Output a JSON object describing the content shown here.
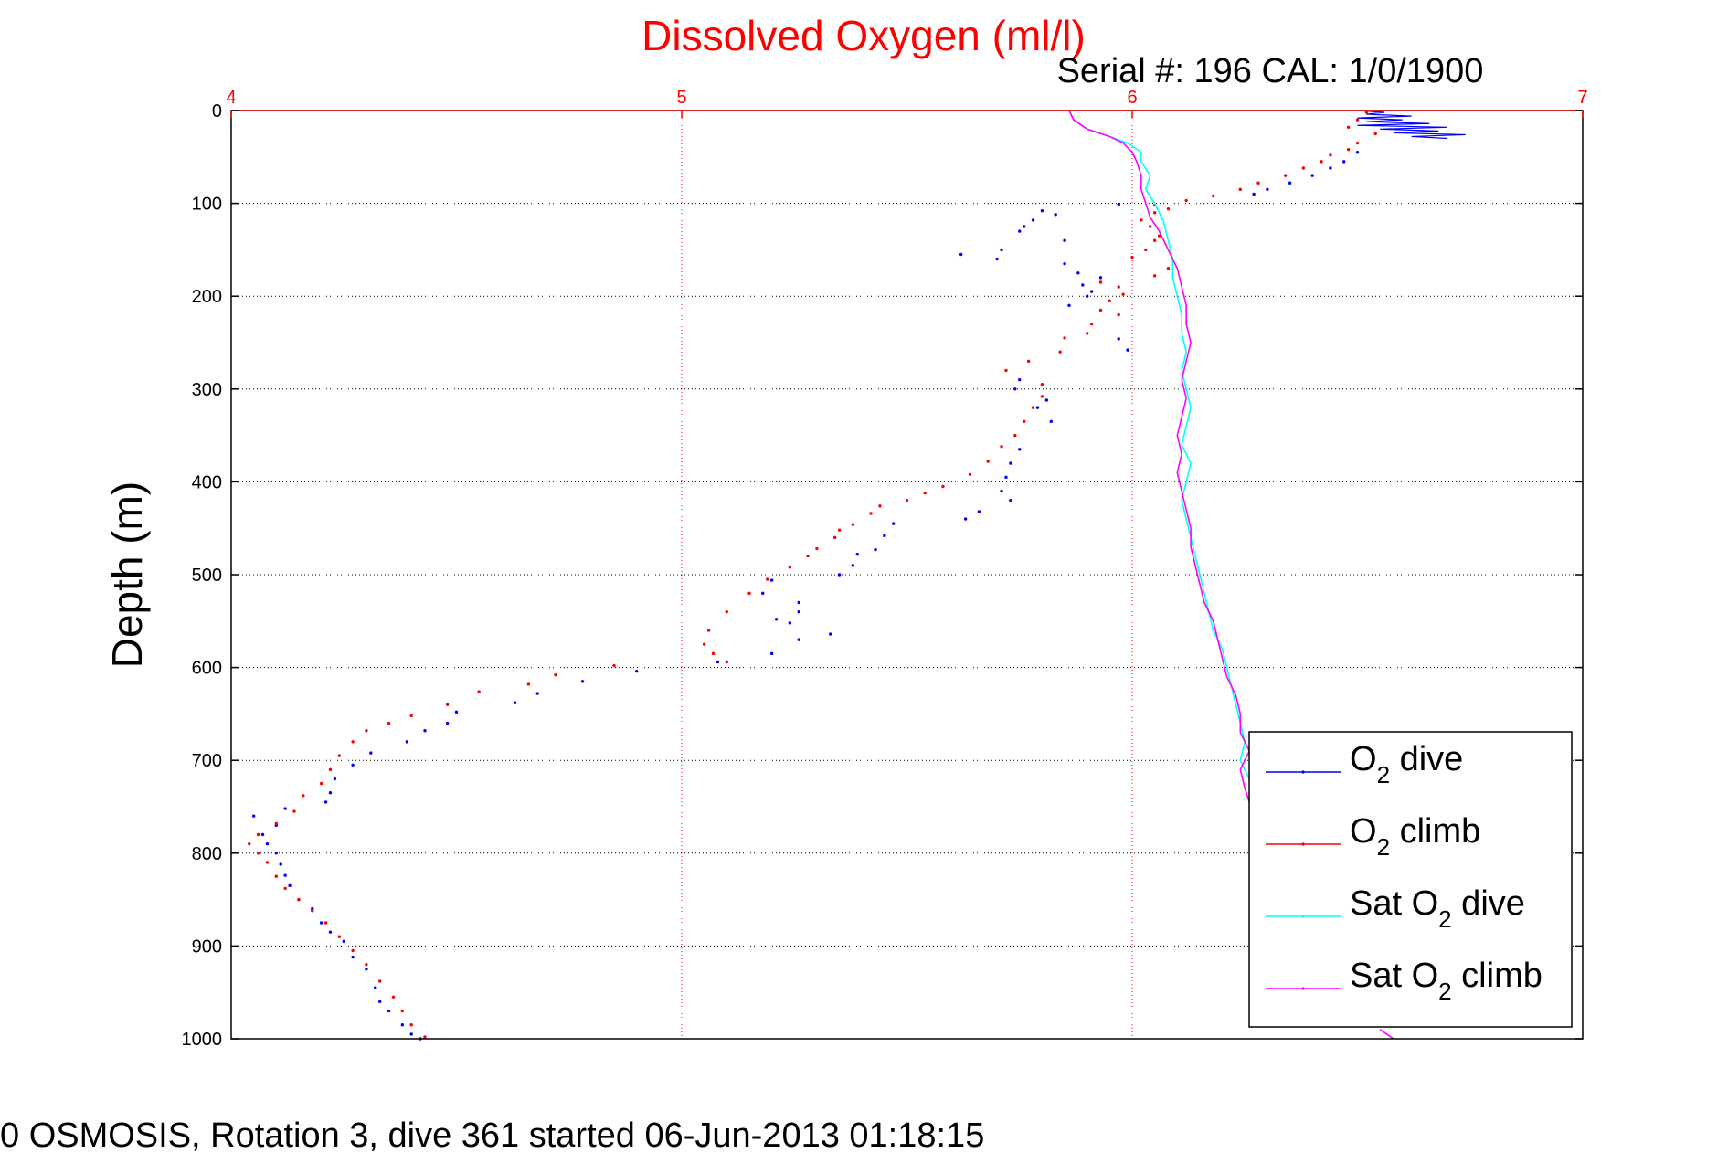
{
  "chart_data": {
    "type": "scatter",
    "title": "Dissolved Oxygen (ml/l)",
    "subtitle": "Serial #: 196  CAL: 1/0/1900",
    "ylabel": "Depth (m)",
    "xlabel": "",
    "xlim": [
      4,
      7
    ],
    "ylim": [
      0,
      1000
    ],
    "y_reversed": true,
    "x_axis_position": "top",
    "grid": true,
    "x_ticks": [
      "4",
      "5",
      "6",
      "7"
    ],
    "y_ticks": [
      "0",
      "100",
      "200",
      "300",
      "400",
      "500",
      "600",
      "700",
      "800",
      "900",
      "1000"
    ],
    "caption": "0 OSMOSIS, Rotation 3, dive 361 started 06-Jun-2013 01:18:15",
    "legend": {
      "position": "bottom-right",
      "entries": [
        {
          "base": "O",
          "sub": "2",
          "rest": " dive",
          "color": "#0000ff"
        },
        {
          "base": "O",
          "sub": "2",
          "rest": " climb",
          "color": "#ff0000"
        },
        {
          "base": "Sat O",
          "sub": "2",
          "rest": " dive",
          "color": "#00ffff"
        },
        {
          "base": "Sat O",
          "sub": "2",
          "rest": " climb",
          "color": "#ff00ff"
        }
      ]
    },
    "series": [
      {
        "name": "O2 dive",
        "color": "#0000ff",
        "mode": "line-top-then-points",
        "top_line_depth_max": 30,
        "points": [
          [
            6.5,
            0
          ],
          [
            6.56,
            2
          ],
          [
            6.52,
            4
          ],
          [
            6.62,
            6
          ],
          [
            6.5,
            8
          ],
          [
            6.6,
            10
          ],
          [
            6.52,
            12
          ],
          [
            6.66,
            14
          ],
          [
            6.5,
            16
          ],
          [
            6.7,
            18
          ],
          [
            6.55,
            20
          ],
          [
            6.68,
            22
          ],
          [
            6.58,
            24
          ],
          [
            6.74,
            26
          ],
          [
            6.62,
            28
          ],
          [
            6.7,
            30
          ],
          [
            6.5,
            45
          ],
          [
            6.47,
            55
          ],
          [
            6.44,
            62
          ],
          [
            6.4,
            70
          ],
          [
            6.35,
            78
          ],
          [
            6.3,
            85
          ],
          [
            6.27,
            90
          ],
          [
            5.97,
            101
          ],
          [
            5.8,
            108
          ],
          [
            5.83,
            112
          ],
          [
            5.78,
            118
          ],
          [
            5.76,
            125
          ],
          [
            5.75,
            130
          ],
          [
            5.85,
            140
          ],
          [
            5.71,
            150
          ],
          [
            5.62,
            155
          ],
          [
            5.7,
            160
          ],
          [
            5.85,
            165
          ],
          [
            5.88,
            175
          ],
          [
            5.93,
            180
          ],
          [
            5.89,
            188
          ],
          [
            5.91,
            195
          ],
          [
            5.9,
            200
          ],
          [
            5.86,
            210
          ],
          [
            5.97,
            246
          ],
          [
            5.99,
            258
          ],
          [
            5.75,
            290
          ],
          [
            5.74,
            300
          ],
          [
            5.81,
            312
          ],
          [
            5.79,
            320
          ],
          [
            5.82,
            335
          ],
          [
            5.75,
            365
          ],
          [
            5.73,
            380
          ],
          [
            5.72,
            395
          ],
          [
            5.71,
            410
          ],
          [
            5.73,
            420
          ],
          [
            5.66,
            432
          ],
          [
            5.63,
            440
          ],
          [
            5.47,
            445
          ],
          [
            5.45,
            458
          ],
          [
            5.43,
            473
          ],
          [
            5.39,
            478
          ],
          [
            5.38,
            490
          ],
          [
            5.35,
            500
          ],
          [
            5.2,
            506
          ],
          [
            5.18,
            520
          ],
          [
            5.26,
            530
          ],
          [
            5.26,
            540
          ],
          [
            5.21,
            548
          ],
          [
            5.24,
            552
          ],
          [
            5.33,
            564
          ],
          [
            5.26,
            570
          ],
          [
            5.2,
            585
          ],
          [
            5.08,
            594
          ],
          [
            4.9,
            604
          ],
          [
            4.78,
            615
          ],
          [
            4.68,
            628
          ],
          [
            4.63,
            638
          ],
          [
            4.5,
            648
          ],
          [
            4.48,
            660
          ],
          [
            4.43,
            668
          ],
          [
            4.39,
            680
          ],
          [
            4.31,
            692
          ],
          [
            4.27,
            705
          ],
          [
            4.23,
            720
          ],
          [
            4.22,
            735
          ],
          [
            4.21,
            745
          ],
          [
            4.12,
            752
          ],
          [
            4.05,
            760
          ],
          [
            4.1,
            770
          ],
          [
            4.07,
            780
          ],
          [
            4.08,
            790
          ],
          [
            4.1,
            800
          ],
          [
            4.11,
            812
          ],
          [
            4.12,
            824
          ],
          [
            4.13,
            835
          ],
          [
            4.15,
            850
          ],
          [
            4.18,
            860
          ],
          [
            4.2,
            875
          ],
          [
            4.22,
            885
          ],
          [
            4.25,
            895
          ],
          [
            4.27,
            912
          ],
          [
            4.3,
            925
          ],
          [
            4.32,
            945
          ],
          [
            4.33,
            960
          ],
          [
            4.35,
            970
          ],
          [
            4.38,
            985
          ],
          [
            4.4,
            995
          ],
          [
            4.42,
            1000
          ]
        ]
      },
      {
        "name": "O2 climb",
        "color": "#ff0000",
        "mode": "points",
        "points": [
          [
            6.52,
            2
          ],
          [
            6.5,
            10
          ],
          [
            6.48,
            18
          ],
          [
            6.54,
            25
          ],
          [
            6.5,
            35
          ],
          [
            6.48,
            42
          ],
          [
            6.44,
            48
          ],
          [
            6.42,
            55
          ],
          [
            6.38,
            62
          ],
          [
            6.34,
            70
          ],
          [
            6.28,
            78
          ],
          [
            6.24,
            85
          ],
          [
            6.18,
            92
          ],
          [
            6.12,
            97
          ],
          [
            6.05,
            102
          ],
          [
            6.08,
            106
          ],
          [
            6.05,
            110
          ],
          [
            6.02,
            118
          ],
          [
            6.04,
            125
          ],
          [
            6.06,
            135
          ],
          [
            6.05,
            140
          ],
          [
            6.03,
            150
          ],
          [
            6.0,
            158
          ],
          [
            6.08,
            170
          ],
          [
            6.05,
            178
          ],
          [
            5.93,
            185
          ],
          [
            5.97,
            190
          ],
          [
            5.98,
            198
          ],
          [
            5.95,
            205
          ],
          [
            5.93,
            215
          ],
          [
            5.97,
            220
          ],
          [
            5.91,
            230
          ],
          [
            5.9,
            240
          ],
          [
            5.85,
            245
          ],
          [
            5.84,
            260
          ],
          [
            5.77,
            270
          ],
          [
            5.72,
            280
          ],
          [
            5.8,
            295
          ],
          [
            5.8,
            308
          ],
          [
            5.78,
            320
          ],
          [
            5.76,
            335
          ],
          [
            5.74,
            350
          ],
          [
            5.71,
            362
          ],
          [
            5.68,
            378
          ],
          [
            5.64,
            392
          ],
          [
            5.58,
            405
          ],
          [
            5.54,
            412
          ],
          [
            5.5,
            420
          ],
          [
            5.44,
            426
          ],
          [
            5.42,
            434
          ],
          [
            5.38,
            446
          ],
          [
            5.35,
            452
          ],
          [
            5.34,
            460
          ],
          [
            5.3,
            472
          ],
          [
            5.28,
            480
          ],
          [
            5.24,
            492
          ],
          [
            5.19,
            505
          ],
          [
            5.15,
            520
          ],
          [
            5.1,
            540
          ],
          [
            5.06,
            560
          ],
          [
            5.05,
            575
          ],
          [
            5.07,
            585
          ],
          [
            5.1,
            594
          ],
          [
            4.85,
            598
          ],
          [
            4.72,
            608
          ],
          [
            4.66,
            618
          ],
          [
            4.55,
            626
          ],
          [
            4.48,
            640
          ],
          [
            4.4,
            652
          ],
          [
            4.35,
            660
          ],
          [
            4.3,
            668
          ],
          [
            4.27,
            680
          ],
          [
            4.24,
            695
          ],
          [
            4.22,
            710
          ],
          [
            4.2,
            725
          ],
          [
            4.16,
            738
          ],
          [
            4.14,
            755
          ],
          [
            4.1,
            768
          ],
          [
            4.06,
            780
          ],
          [
            4.04,
            790
          ],
          [
            4.06,
            800
          ],
          [
            4.08,
            810
          ],
          [
            4.1,
            825
          ],
          [
            4.12,
            838
          ],
          [
            4.15,
            850
          ],
          [
            4.18,
            862
          ],
          [
            4.21,
            875
          ],
          [
            4.24,
            890
          ],
          [
            4.27,
            905
          ],
          [
            4.3,
            920
          ],
          [
            4.33,
            938
          ],
          [
            4.36,
            955
          ],
          [
            4.38,
            970
          ],
          [
            4.4,
            985
          ],
          [
            4.43,
            998
          ]
        ]
      },
      {
        "name": "Sat O2 dive",
        "color": "#00ffff",
        "mode": "line",
        "points": [
          [
            5.86,
            0
          ],
          [
            5.87,
            10
          ],
          [
            5.9,
            20
          ],
          [
            5.95,
            28
          ],
          [
            5.99,
            35
          ],
          [
            6.02,
            45
          ],
          [
            6.02,
            55
          ],
          [
            6.04,
            70
          ],
          [
            6.03,
            85
          ],
          [
            6.05,
            100
          ],
          [
            6.07,
            120
          ],
          [
            6.08,
            140
          ],
          [
            6.09,
            160
          ],
          [
            6.09,
            180
          ],
          [
            6.1,
            200
          ],
          [
            6.11,
            220
          ],
          [
            6.11,
            240
          ],
          [
            6.12,
            260
          ],
          [
            6.11,
            280
          ],
          [
            6.12,
            300
          ],
          [
            6.13,
            320
          ],
          [
            6.12,
            340
          ],
          [
            6.11,
            360
          ],
          [
            6.13,
            380
          ],
          [
            6.12,
            400
          ],
          [
            6.11,
            420
          ],
          [
            6.12,
            440
          ],
          [
            6.13,
            460
          ],
          [
            6.14,
            480
          ],
          [
            6.15,
            500
          ],
          [
            6.16,
            520
          ],
          [
            6.17,
            540
          ],
          [
            6.18,
            560
          ],
          [
            6.2,
            580
          ],
          [
            6.21,
            600
          ],
          [
            6.22,
            620
          ],
          [
            6.23,
            640
          ],
          [
            6.24,
            660
          ],
          [
            6.25,
            680
          ],
          [
            6.24,
            700
          ],
          [
            6.26,
            720
          ],
          [
            6.27,
            740
          ],
          [
            6.55,
            990
          ],
          [
            6.58,
            1000
          ]
        ]
      },
      {
        "name": "Sat O2 climb",
        "color": "#ff00ff",
        "mode": "line",
        "points": [
          [
            5.86,
            0
          ],
          [
            5.87,
            10
          ],
          [
            5.9,
            20
          ],
          [
            5.95,
            28
          ],
          [
            5.98,
            35
          ],
          [
            6.0,
            45
          ],
          [
            6.01,
            55
          ],
          [
            6.02,
            70
          ],
          [
            6.02,
            85
          ],
          [
            6.03,
            100
          ],
          [
            6.04,
            115
          ],
          [
            6.06,
            130
          ],
          [
            6.08,
            150
          ],
          [
            6.1,
            170
          ],
          [
            6.11,
            190
          ],
          [
            6.12,
            210
          ],
          [
            6.12,
            230
          ],
          [
            6.13,
            250
          ],
          [
            6.12,
            270
          ],
          [
            6.11,
            290
          ],
          [
            6.12,
            310
          ],
          [
            6.11,
            330
          ],
          [
            6.1,
            350
          ],
          [
            6.11,
            370
          ],
          [
            6.1,
            390
          ],
          [
            6.11,
            410
          ],
          [
            6.12,
            430
          ],
          [
            6.13,
            450
          ],
          [
            6.13,
            470
          ],
          [
            6.14,
            490
          ],
          [
            6.15,
            510
          ],
          [
            6.16,
            530
          ],
          [
            6.18,
            550
          ],
          [
            6.19,
            570
          ],
          [
            6.2,
            590
          ],
          [
            6.21,
            610
          ],
          [
            6.23,
            630
          ],
          [
            6.24,
            650
          ],
          [
            6.24,
            670
          ],
          [
            6.26,
            690
          ],
          [
            6.24,
            710
          ],
          [
            6.25,
            730
          ],
          [
            6.26,
            745
          ],
          [
            6.55,
            990
          ],
          [
            6.58,
            1000
          ]
        ]
      }
    ]
  }
}
